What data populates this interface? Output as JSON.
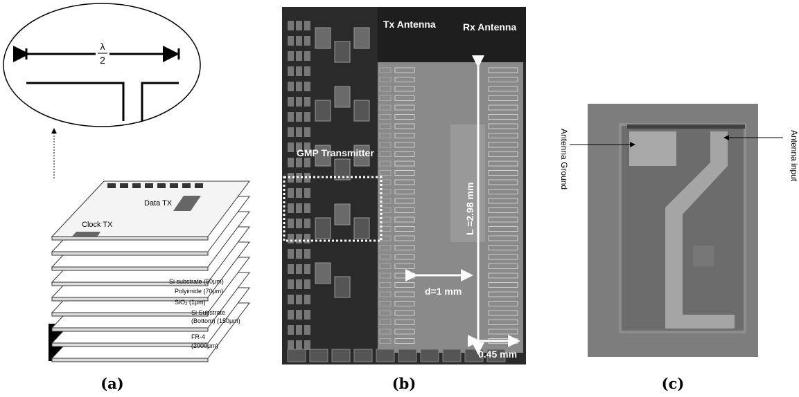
{
  "panels": [
    {
      "label": "(a)",
      "fraction": {
        "numerator": "λ",
        "denominator": "2"
      },
      "labels": [
        "Data TX",
        "Clock TX",
        "Si substrate (50μm)",
        "Polyimide (70μm)",
        "SiO₂ (1μm)",
        "Si Substrate",
        "(Bottom) (150μm)",
        "FR-4",
        "(2000μm)"
      ]
    },
    {
      "label": "(b)",
      "labels": [
        "Tx Antenna",
        "Rx Antenna",
        "GMP Transmitter",
        "L =2.98 mm",
        "d=1 mm",
        "0.45 mm"
      ]
    },
    {
      "label": "(c)",
      "labels": [
        "Antenna Ground",
        "Antenna input"
      ]
    }
  ]
}
